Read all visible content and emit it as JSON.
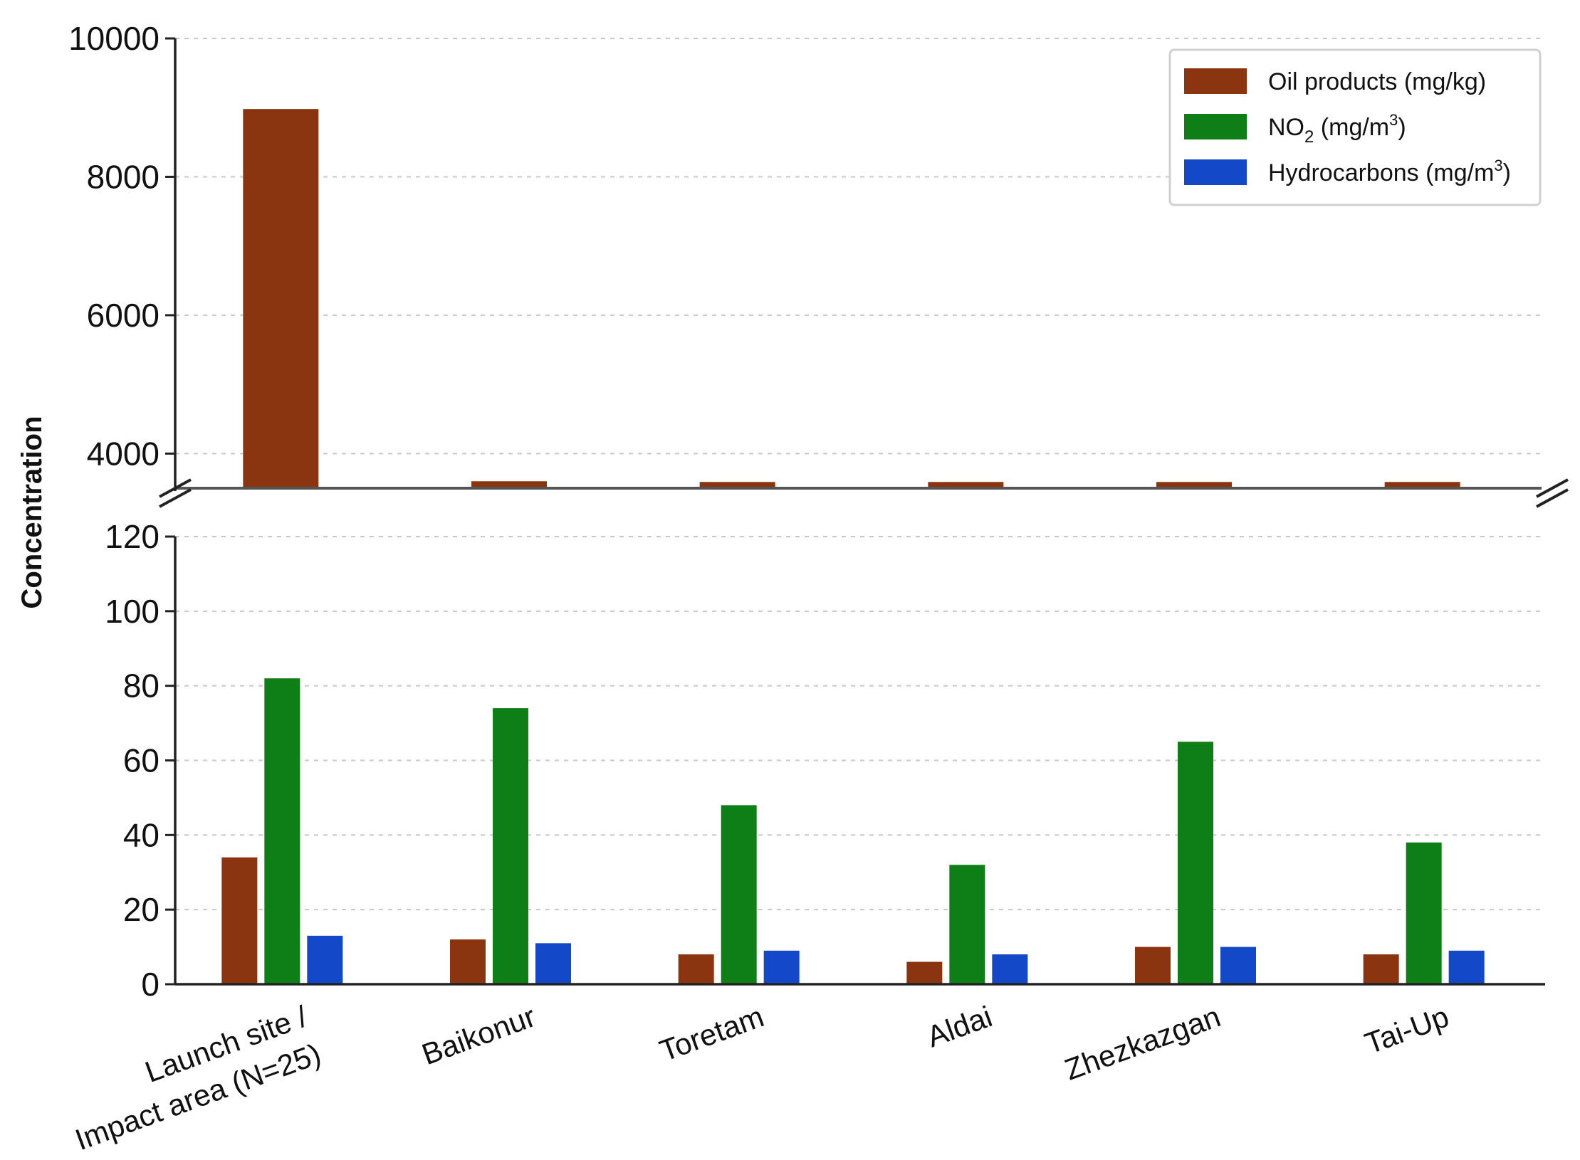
{
  "chart_data": {
    "type": "bar",
    "ylabel": "Concentration",
    "broken_axis": true,
    "upper_axis": {
      "ylim": [
        3500,
        10000
      ],
      "ticks": [
        4000,
        6000,
        8000,
        10000
      ],
      "break_at": 3500
    },
    "lower_axis": {
      "ylim": [
        0,
        120
      ],
      "ticks": [
        0,
        20,
        40,
        60,
        80,
        100,
        120
      ]
    },
    "grid": "horizontal dashed",
    "legend_position": "top-right",
    "categories": [
      "Launch site /\nImpact area (N=25)",
      "Baikonur",
      "Toretam",
      "Aldai",
      "Zhezkazgan",
      "Tai-Up"
    ],
    "series": [
      {
        "name": "Oil products (mg/kg)",
        "legend_main": "Oil products (mg/kg)",
        "color": "#8B3410",
        "values": [
          34,
          12,
          8,
          6,
          10,
          8
        ],
        "upper_values": [
          8980,
          3600,
          3590,
          3590,
          3590,
          3590
        ]
      },
      {
        "name": "NO2 (mg/m3)",
        "legend_main": "NO",
        "legend_sub": "2",
        "legend_mid": " (mg/m",
        "legend_sup": "3",
        "legend_end": ")",
        "color": "#0E7F16",
        "values": [
          82,
          74,
          48,
          32,
          65,
          38
        ]
      },
      {
        "name": "Hydrocarbons (mg/m3)",
        "legend_main": "Hydrocarbons (mg/m",
        "legend_sup": "3",
        "legend_end": ")",
        "color": "#1348C8",
        "values": [
          13,
          11,
          9,
          8,
          10,
          9
        ]
      }
    ]
  }
}
